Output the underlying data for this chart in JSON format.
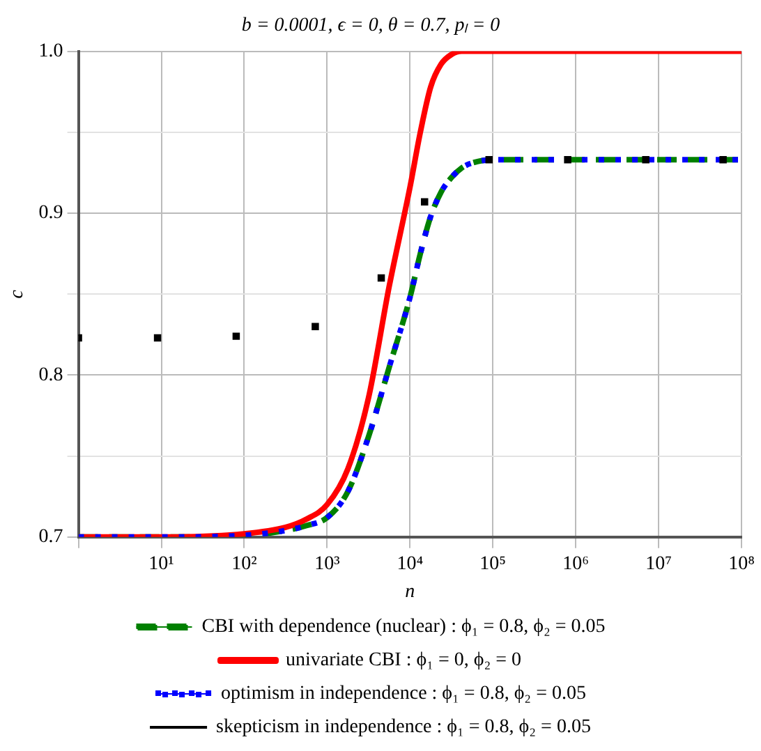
{
  "chart_data": {
    "type": "line",
    "title": "b = 0.0001, ϵ = 0, θ = 0.7, pₗ = 0",
    "xlabel": "n",
    "ylabel": "c",
    "log": "x",
    "xlim": [
      1,
      100000000
    ],
    "xticks": [
      {
        "value": 1,
        "label": null
      },
      {
        "value": 10,
        "label": "10¹"
      },
      {
        "value": 100,
        "label": "10²"
      },
      {
        "value": 1000,
        "label": "10³"
      },
      {
        "value": 10000,
        "label": "10⁴"
      },
      {
        "value": 100000,
        "label": "10⁵"
      },
      {
        "value": 1000000,
        "label": "10⁶"
      },
      {
        "value": 10000000,
        "label": "10⁷"
      },
      {
        "value": 100000000,
        "label": "10⁸"
      }
    ],
    "ylim": [
      0.7,
      1.0
    ],
    "yticks": [
      0.7,
      {
        "value": 0.75,
        "label": null
      },
      0.8,
      {
        "value": 0.85,
        "label": null
      },
      0.9,
      {
        "value": 0.95,
        "label": null
      },
      {
        "value": 1.0,
        "label": "1.0"
      }
    ],
    "grid": true,
    "legend": "bottom",
    "series": [
      {
        "name": "CBI with dependence (nuclear) : ϕ₁ = 0.8, ϕ₂ = 0.05",
        "color": "#008000",
        "line_style": "dashed",
        "marker": "none",
        "x": [
          1,
          10,
          100,
          316,
          562,
          1000,
          1778,
          3162,
          5623,
          10000,
          13335,
          17783,
          23714,
          31623,
          42170,
          56234,
          100000,
          1000000,
          10000000,
          100000000
        ],
        "values": [
          0.7,
          0.7,
          0.701,
          0.704,
          0.707,
          0.712,
          0.728,
          0.762,
          0.805,
          0.848,
          0.875,
          0.898,
          0.913,
          0.922,
          0.928,
          0.931,
          0.933,
          0.933,
          0.933,
          0.933
        ]
      },
      {
        "name": "univariate CBI : ϕ₁ = 0, ϕ₂ = 0",
        "color": "#ff0000",
        "line_style": "solid",
        "marker": "none",
        "x": [
          1,
          10,
          100,
          316,
          562,
          1000,
          1778,
          3162,
          5623,
          10000,
          13335,
          17783,
          23714,
          31623,
          42170,
          56234,
          100000,
          1000000,
          10000000,
          100000000
        ],
        "values": [
          0.7,
          0.7,
          0.702,
          0.706,
          0.711,
          0.72,
          0.742,
          0.786,
          0.855,
          0.916,
          0.95,
          0.978,
          0.992,
          0.998,
          1.0,
          1.0,
          1.0,
          1.0,
          1.0,
          1.0
        ]
      },
      {
        "name": "optimism in independence : ϕ₁ = 0.8, ϕ₂ = 0.05",
        "color": "#0000ff",
        "line_style": "dotted",
        "marker": "none",
        "x": [
          1,
          10,
          100,
          316,
          562,
          1000,
          1778,
          3162,
          5623,
          10000,
          13335,
          17783,
          23714,
          31623,
          42170,
          56234,
          100000,
          1000000,
          10000000,
          100000000
        ],
        "values": [
          0.7,
          0.7,
          0.701,
          0.704,
          0.707,
          0.712,
          0.728,
          0.762,
          0.805,
          0.848,
          0.875,
          0.898,
          0.913,
          0.922,
          0.928,
          0.931,
          0.933,
          0.933,
          0.933,
          0.933
        ]
      },
      {
        "name": "skepticism in independence : ϕ₁ = 0.8, ϕ₂ = 0.05",
        "type": "scatter",
        "color": "#000000",
        "marker": "square",
        "x": [
          1,
          9,
          80,
          720,
          4500,
          15000,
          90000,
          800000,
          7000000,
          60000000
        ],
        "values": [
          0.823,
          0.823,
          0.824,
          0.83,
          0.86,
          0.907,
          0.933,
          0.933,
          0.933,
          0.933
        ]
      }
    ]
  }
}
